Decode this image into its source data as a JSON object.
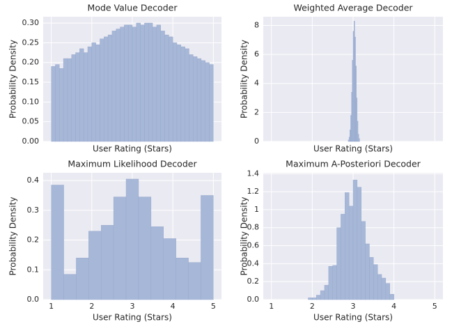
{
  "chart_data": [
    {
      "type": "histogram",
      "title": "Mode Value Decoder",
      "xlabel": "User Rating (Stars)",
      "ylabel": "Probability Density",
      "bins": [
        1.0,
        1.1,
        1.2,
        1.3,
        1.4,
        1.5,
        1.6,
        1.7,
        1.8,
        1.9,
        2.0,
        2.1,
        2.2,
        2.3,
        2.4,
        2.5,
        2.6,
        2.7,
        2.8,
        2.9,
        3.0,
        3.1,
        3.2,
        3.3,
        3.4,
        3.5,
        3.6,
        3.7,
        3.8,
        3.9,
        4.0,
        4.1,
        4.2,
        4.3,
        4.4,
        4.5,
        4.6,
        4.7,
        4.8,
        4.9,
        5.0
      ],
      "values": [
        0.19,
        0.195,
        0.185,
        0.21,
        0.21,
        0.22,
        0.225,
        0.235,
        0.225,
        0.24,
        0.25,
        0.245,
        0.26,
        0.265,
        0.27,
        0.28,
        0.285,
        0.29,
        0.295,
        0.295,
        0.29,
        0.3,
        0.295,
        0.3,
        0.3,
        0.29,
        0.295,
        0.28,
        0.27,
        0.265,
        0.25,
        0.245,
        0.24,
        0.235,
        0.22,
        0.215,
        0.21,
        0.205,
        0.2,
        0.195
      ],
      "color": "#a7b7d7",
      "xlim": [
        0.8,
        5.2
      ],
      "xticks": [
        1,
        2,
        3,
        4,
        5
      ],
      "xtick_labels": false,
      "ylim": [
        0,
        0.316
      ],
      "yticks": [
        {
          "value": 0,
          "label": "0.00"
        },
        {
          "value": 0.05,
          "label": "0.05"
        },
        {
          "value": 0.1,
          "label": "0.10"
        },
        {
          "value": 0.15,
          "label": "0.15"
        },
        {
          "value": 0.2,
          "label": "0.20"
        },
        {
          "value": 0.25,
          "label": "0.25"
        },
        {
          "value": 0.3,
          "label": "0.30"
        }
      ],
      "grid": true
    },
    {
      "type": "histogram",
      "title": "Weighted Average Decoder",
      "xlabel": "User Rating (Stars)",
      "ylabel": "Probability Density",
      "bins": [
        2.88,
        2.9,
        2.92,
        2.94,
        2.96,
        2.98,
        3.0,
        3.02,
        3.04,
        3.06,
        3.08,
        3.1,
        3.12,
        3.14,
        3.16
      ],
      "values": [
        0.1,
        0.3,
        0.8,
        1.8,
        3.4,
        5.6,
        7.6,
        8.3,
        7.2,
        5.2,
        3.0,
        1.4,
        0.5,
        0.2
      ],
      "color": "#a7b7d7",
      "xlim": [
        0.8,
        5.2
      ],
      "xticks": [
        1,
        2,
        3,
        4,
        5
      ],
      "xtick_labels": false,
      "ylim": [
        0,
        8.6
      ],
      "yticks": [
        0,
        2,
        4,
        6,
        8
      ],
      "grid": true
    },
    {
      "type": "histogram",
      "title": "Maximum Likelihood Decoder",
      "xlabel": "User Rating (Stars)",
      "ylabel": "Probability Density",
      "bins": [
        1,
        1.308,
        1.615,
        1.923,
        2.231,
        2.538,
        2.846,
        3.154,
        3.462,
        3.769,
        4.077,
        4.385,
        4.692,
        5
      ],
      "values": [
        0.385,
        0.085,
        0.14,
        0.23,
        0.25,
        0.345,
        0.405,
        0.345,
        0.245,
        0.205,
        0.14,
        0.125,
        0.35
      ],
      "color": "#a7b7d7",
      "xlim": [
        0.8,
        5.2
      ],
      "xticks": [
        1,
        2,
        3,
        4,
        5
      ],
      "xtick_labels": true,
      "ylim": [
        0,
        0.426
      ],
      "yticks": [
        {
          "value": 0,
          "label": "0.0"
        },
        0.1,
        0.2,
        0.3,
        0.4
      ],
      "grid": true
    },
    {
      "type": "histogram",
      "title": "Maximum A-Posteriori Decoder",
      "xlabel": "User Rating (Stars)",
      "ylabel": "Probability Density",
      "bins": [
        1.9,
        2.0,
        2.1,
        2.2,
        2.3,
        2.4,
        2.5,
        2.6,
        2.7,
        2.8,
        2.9,
        3.0,
        3.1,
        3.2,
        3.3,
        3.4,
        3.5,
        3.6,
        3.7,
        3.8,
        3.9,
        4.0
      ],
      "values": [
        0.02,
        0.02,
        0.05,
        0.1,
        0.16,
        0.37,
        0.38,
        0.8,
        0.95,
        1.19,
        1.04,
        1.33,
        1.25,
        0.87,
        0.62,
        0.47,
        0.39,
        0.28,
        0.24,
        0.18,
        0.06
      ],
      "color": "#a7b7d7",
      "xlim": [
        0.8,
        5.2
      ],
      "xticks": [
        1,
        2,
        3,
        4,
        5
      ],
      "xtick_labels": true,
      "ylim": [
        0,
        1.41
      ],
      "yticks": [
        {
          "value": 0,
          "label": "0.0"
        },
        0.2,
        0.4,
        0.6,
        0.8,
        1,
        1.2,
        1.4
      ],
      "grid": true
    }
  ]
}
